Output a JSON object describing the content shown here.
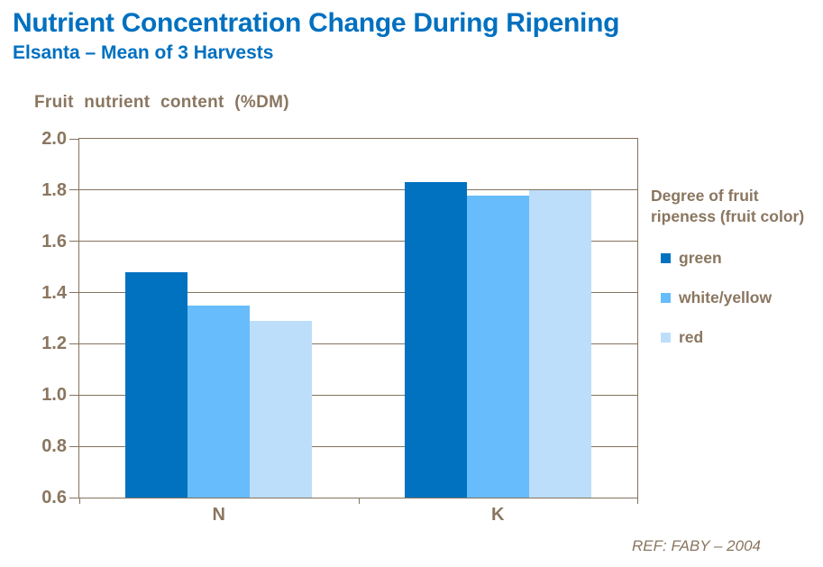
{
  "header": {
    "title": "Nutrient Concentration Change During Ripening",
    "subtitle": "Elsanta – Mean of 3 Harvests"
  },
  "chart_data": {
    "type": "bar",
    "axis_title": "Fruit nutrient content (%DM)",
    "categories": [
      "N",
      "K"
    ],
    "series": [
      {
        "name": "green",
        "color": "#0072C0",
        "values": [
          1.48,
          1.83
        ]
      },
      {
        "name": "white/yellow",
        "color": "#67BCFB",
        "values": [
          1.35,
          1.78
        ]
      },
      {
        "name": "red",
        "color": "#BDDEFB",
        "values": [
          1.29,
          1.8
        ]
      }
    ],
    "ylim": [
      0.6,
      2.0
    ],
    "ytick_step": 0.2,
    "ytick_labels": [
      "2.0",
      "1.8",
      "1.6",
      "1.4",
      "1.2",
      "1.0",
      "0.8",
      "0.6"
    ],
    "grid": true,
    "legend_position": "right",
    "legend_title": "Degree of fruit ripeness (fruit color)"
  },
  "legend": {
    "title_line1": "Degree of fruit",
    "title_line2": "ripeness (fruit color)"
  },
  "footer": {
    "ref": "REF:  FABY – 2004"
  },
  "colors": {
    "title_blue": "#0070C0",
    "axis_text_brown": "#8A7660",
    "axis_line_brown": "#85735F"
  }
}
